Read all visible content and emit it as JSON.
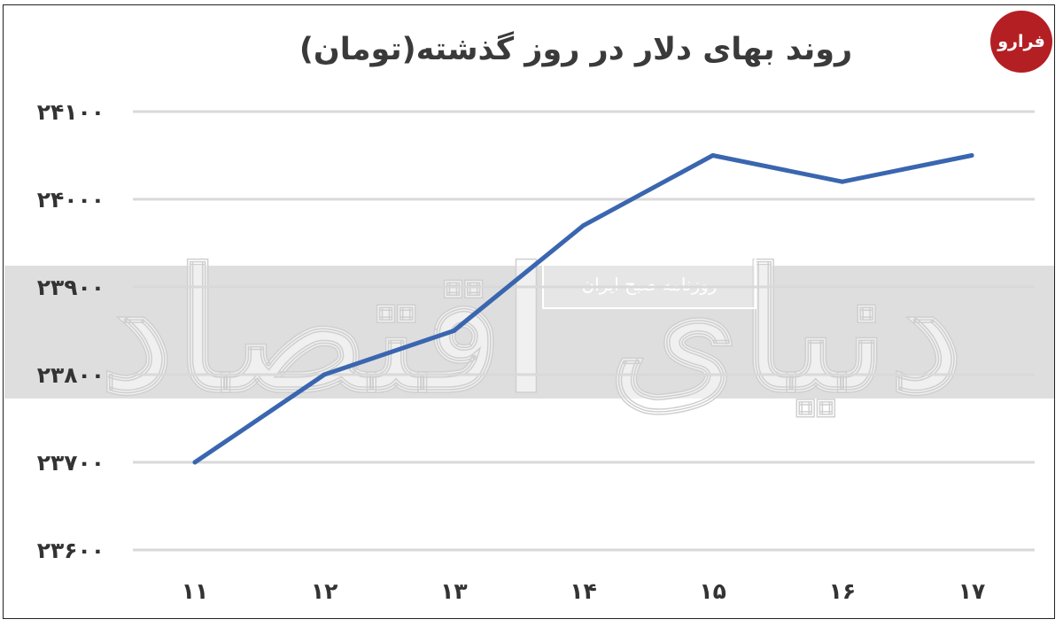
{
  "chart_data": {
    "type": "line",
    "title": "روند بهای دلار در روز گذشته(تومان)",
    "xlabel": "",
    "ylabel": "",
    "categories": [
      "۱۱",
      "۱۲",
      "۱۳",
      "۱۴",
      "۱۵",
      "۱۶",
      "۱۷"
    ],
    "values": [
      23700,
      23800,
      23850,
      23970,
      24050,
      24020,
      24050
    ],
    "ylim": [
      23600,
      24100
    ],
    "yticks": [
      24100,
      24000,
      23900,
      23800,
      23700,
      23600
    ],
    "ytick_labels": [
      "۲۴۱۰۰",
      "۲۴۰۰۰",
      "۲۳۹۰۰",
      "۲۳۸۰۰",
      "۲۳۷۰۰",
      "۲۳۶۰۰"
    ],
    "grid": true,
    "line_color": "#3a66b0"
  },
  "logo_text": "فرارو",
  "watermark": {
    "main": "دنیای اقتصاد",
    "sub": "روزنامه صبح ایران"
  }
}
